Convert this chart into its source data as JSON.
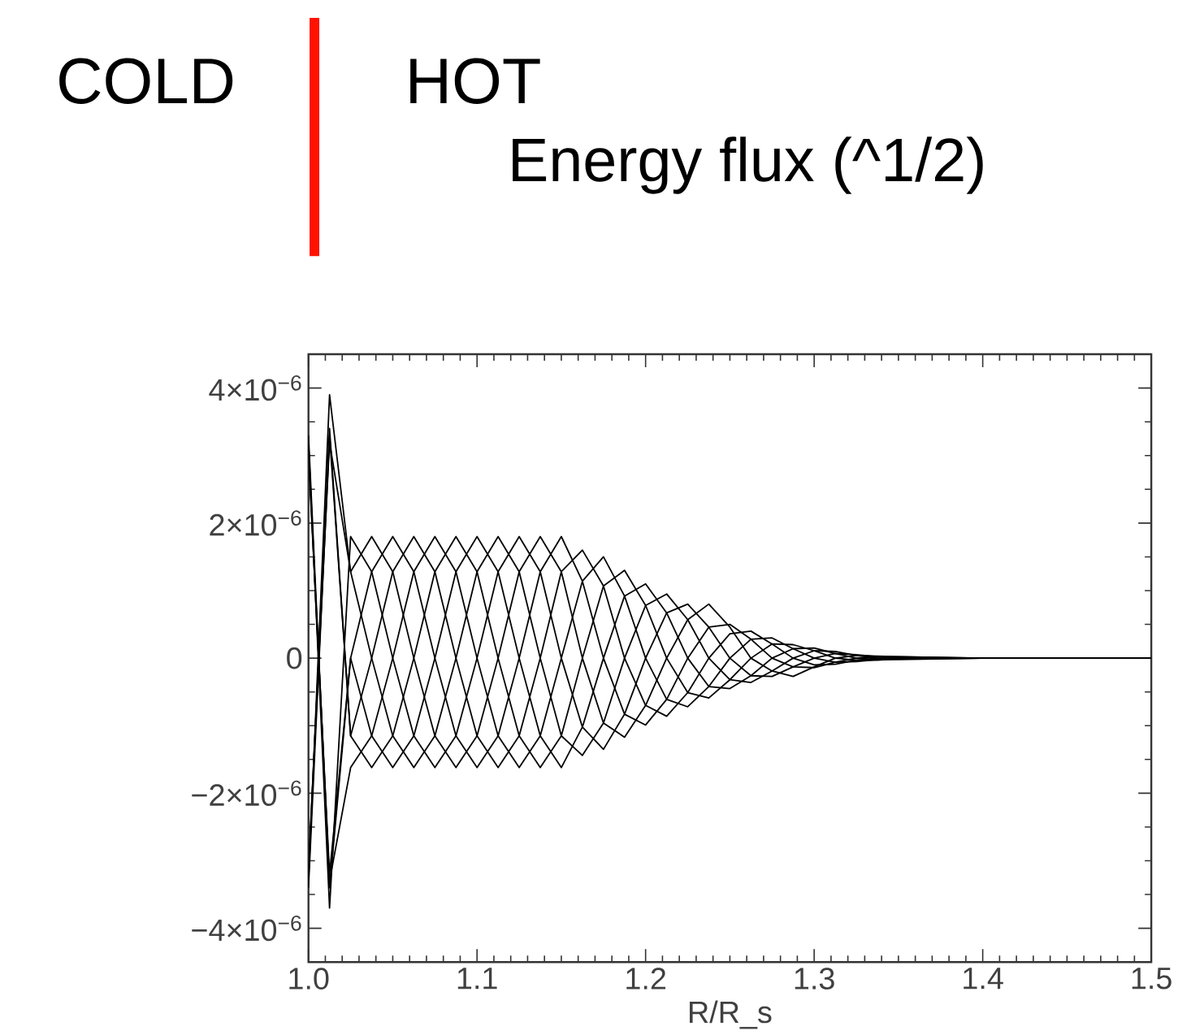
{
  "chart_data": {
    "type": "line",
    "title": "Energy flux (^1/2)",
    "xlabel": "R/R_s",
    "annotations": [
      "COLD",
      "HOT"
    ],
    "xlim": [
      1.0,
      1.5
    ],
    "ylim": [
      -4.5e-06,
      4.5e-06
    ],
    "xticks": [
      {
        "value": 1.0,
        "label": "1.0"
      },
      {
        "value": 1.1,
        "label": "1.1"
      },
      {
        "value": 1.2,
        "label": "1.2"
      },
      {
        "value": 1.3,
        "label": "1.3"
      },
      {
        "value": 1.4,
        "label": "1.4"
      },
      {
        "value": 1.5,
        "label": "1.5"
      }
    ],
    "yticks": [
      {
        "value": -4e-06,
        "label": "−4×10$^{−6}$"
      },
      {
        "value": -2e-06,
        "label": "−2×10$^{−6}$"
      },
      0,
      {
        "value": 2e-06,
        "label": "2×10$^{−6}$"
      },
      {
        "value": 4e-06,
        "label": "4×10$^{−6}$"
      }
    ],
    "x": [
      1.0,
      1.0125,
      1.025,
      1.0375,
      1.05,
      1.0625,
      1.075,
      1.0875,
      1.1,
      1.1125,
      1.125,
      1.1375,
      1.15,
      1.1625,
      1.175,
      1.1875,
      1.2,
      1.2125,
      1.225,
      1.2375,
      1.25,
      1.2625,
      1.275,
      1.2875,
      1.3,
      1.3125,
      1.325,
      1.3375,
      1.35,
      1.4,
      1.47,
      1.5
    ],
    "series": [
      {
        "color": "#000000",
        "values": [
          3.2e-06,
          -3.7e-06,
          1.8e-06,
          1.28e-06,
          0,
          -1.15e-06,
          -1.62e-06,
          -1.15e-06,
          0,
          1.28e-06,
          1.8e-06,
          1.28e-06,
          0,
          -1.02e-06,
          -1.35e-06,
          -8.3e-07,
          0,
          6.7e-07,
          8e-07,
          4.6e-07,
          0,
          -2.6e-07,
          -2.7e-07,
          -1.3e-07,
          0,
          7e-08,
          5e-08,
          2e-08,
          0,
          0,
          0,
          0
        ]
      },
      {
        "color": "#000000",
        "values": [
          -3.3e-06,
          3.9e-06,
          1.28e-06,
          0,
          -1.15e-06,
          -1.62e-06,
          -1.15e-06,
          0,
          1.28e-06,
          1.8e-06,
          1.28e-06,
          0,
          -1.15e-06,
          -1.44e-06,
          -9.6e-07,
          0,
          7.8e-07,
          9.5e-07,
          5.7e-07,
          0,
          -3.2e-07,
          -3.6e-07,
          -1.9e-07,
          0,
          1.1e-07,
          1e-07,
          4e-08,
          0,
          -1e-08,
          0,
          0,
          0
        ]
      },
      {
        "color": "#000000",
        "values": [
          3.3e-06,
          -3.4e-06,
          0,
          -1.15e-06,
          -1.62e-06,
          -1.15e-06,
          0,
          1.28e-06,
          1.8e-06,
          1.28e-06,
          0,
          -1.15e-06,
          -1.62e-06,
          -1.02e-06,
          0,
          9.2e-07,
          1.1e-06,
          6.7e-07,
          0,
          -4.2e-07,
          -4.5e-07,
          -2.6e-07,
          0,
          1.4e-07,
          1.5e-07,
          7e-08,
          0,
          -2e-08,
          -2e-08,
          0,
          0,
          0
        ]
      },
      {
        "color": "#000000",
        "values": [
          -3.4e-06,
          3.3e-06,
          -1.15e-06,
          -1.62e-06,
          -1.15e-06,
          0,
          1.28e-06,
          1.8e-06,
          1.28e-06,
          0,
          -1.15e-06,
          -1.62e-06,
          -1.15e-06,
          0,
          1.07e-06,
          1.3e-06,
          7.8e-07,
          0,
          -5.1e-07,
          -5.9e-07,
          -3.2e-07,
          0,
          2.1e-07,
          2e-07,
          1.1e-07,
          0,
          -3e-08,
          -3e-08,
          -1e-08,
          0,
          0,
          0
        ]
      },
      {
        "color": "#000000",
        "values": [
          3.1e-06,
          -3.3e-06,
          -1.62e-06,
          -1.15e-06,
          0,
          1.28e-06,
          1.8e-06,
          1.28e-06,
          0,
          -1.15e-06,
          -1.62e-06,
          -1.15e-06,
          0,
          1.14e-06,
          1.5e-06,
          9.2e-07,
          0,
          -6.1e-07,
          -7.2e-07,
          -4.2e-07,
          0,
          2.8e-07,
          3e-07,
          1.4e-07,
          0,
          -6e-08,
          -5e-08,
          -2e-08,
          0,
          0,
          0,
          0
        ]
      },
      {
        "color": "#000000",
        "values": [
          -3.2e-06,
          3.4e-06,
          -1.15e-06,
          0,
          1.28e-06,
          1.8e-06,
          1.28e-06,
          0,
          -1.15e-06,
          -1.62e-06,
          -1.15e-06,
          0,
          1.28e-06,
          1.6e-06,
          1.07e-06,
          0,
          -7e-07,
          -8.6e-07,
          -5.1e-07,
          0,
          3.6e-07,
          4e-07,
          2.1e-07,
          0,
          -1e-07,
          -9e-08,
          -3e-08,
          0,
          1e-08,
          0,
          0,
          0
        ]
      },
      {
        "color": "#000000",
        "values": [
          3e-06,
          -3.2e-06,
          0,
          1.28e-06,
          1.8e-06,
          1.28e-06,
          0,
          -1.15e-06,
          -1.62e-06,
          -1.15e-06,
          0,
          1.28e-06,
          1.8e-06,
          1.14e-06,
          0,
          -8.3e-07,
          -9.9e-07,
          -6.1e-07,
          0,
          4.6e-07,
          5e-07,
          2.8e-07,
          0,
          -1.3e-07,
          -1.4e-07,
          -6e-08,
          0,
          2e-08,
          2e-08,
          0,
          0,
          0
        ]
      },
      {
        "color": "#000000",
        "values": [
          -3.1e-06,
          3.2e-06,
          1.28e-06,
          1.8e-06,
          1.28e-06,
          0,
          -1.15e-06,
          -1.62e-06,
          -1.15e-06,
          0,
          1.28e-06,
          1.8e-06,
          1.28e-06,
          0,
          -9.6e-07,
          -1.17e-06,
          -7e-07,
          0,
          5.7e-07,
          8e-07,
          4.6e-07,
          0,
          -1.9e-07,
          -2.7e-07,
          -1.3e-07,
          0,
          4e-08,
          3e-08,
          2e-08,
          0,
          0,
          0
        ]
      }
    ]
  }
}
